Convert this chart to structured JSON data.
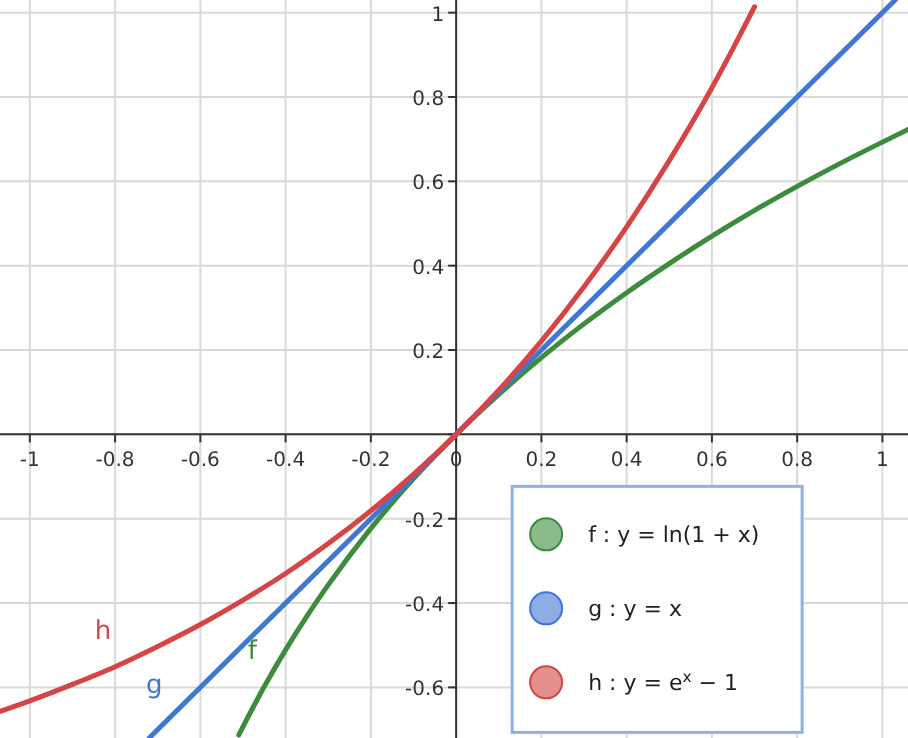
{
  "chart_data": {
    "type": "line",
    "xlim": [
      -1.07,
      1.06
    ],
    "ylim": [
      -0.72,
      1.03
    ],
    "xticks": [
      -1,
      -0.8,
      -0.6,
      -0.4,
      -0.2,
      0,
      0.2,
      0.4,
      0.6,
      0.8,
      1
    ],
    "yticks": [
      -0.6,
      -0.4,
      -0.2,
      {
        "value": 0,
        "label": null
      },
      0.2,
      0.4,
      0.6,
      0.8,
      1
    ],
    "grid": true,
    "legend": "bottom right",
    "line_style": "solid",
    "series": [
      {
        "name": "f : y = ln(1 + x)",
        "color": "#3d8c3d",
        "x": [
          -0.51,
          -0.45,
          -0.4,
          -0.35,
          -0.3,
          -0.2,
          -0.1,
          0,
          0.1,
          0.2,
          0.3,
          0.4,
          0.5,
          0.6,
          0.7,
          0.8,
          0.9,
          1,
          1.06
        ],
        "values": [
          -0.713,
          -0.598,
          -0.511,
          -0.431,
          -0.357,
          -0.223,
          -0.105,
          0,
          0.095,
          0.182,
          0.262,
          0.336,
          0.405,
          0.47,
          0.531,
          0.588,
          0.642,
          0.693,
          0.723
        ]
      },
      {
        "name": "g : y = x",
        "color": "#3f78d4",
        "x": [
          -0.72,
          0,
          1.03
        ],
        "values": [
          -0.72,
          0,
          1.03
        ]
      },
      {
        "name": "h : y = e$^{x}$ − 1",
        "color": "#d64545",
        "x": [
          -1.07,
          -1,
          -0.9,
          -0.8,
          -0.7,
          -0.6,
          -0.5,
          -0.4,
          -0.3,
          -0.2,
          -0.1,
          0,
          0.1,
          0.2,
          0.3,
          0.4,
          0.5,
          0.6,
          0.65,
          0.7
        ],
        "values": [
          -0.657,
          -0.632,
          -0.593,
          -0.551,
          -0.503,
          -0.451,
          -0.393,
          -0.33,
          -0.259,
          -0.181,
          -0.095,
          0,
          0.105,
          0.221,
          0.35,
          0.492,
          0.649,
          0.822,
          0.916,
          1.014
        ]
      }
    ],
    "annotations": [
      {
        "text": "h",
        "x": -0.8,
        "y": -0.551
      },
      {
        "text": "g",
        "x": -0.68,
        "y": -0.68
      },
      {
        "text": "f",
        "x": -0.45,
        "y": -0.598
      }
    ]
  }
}
